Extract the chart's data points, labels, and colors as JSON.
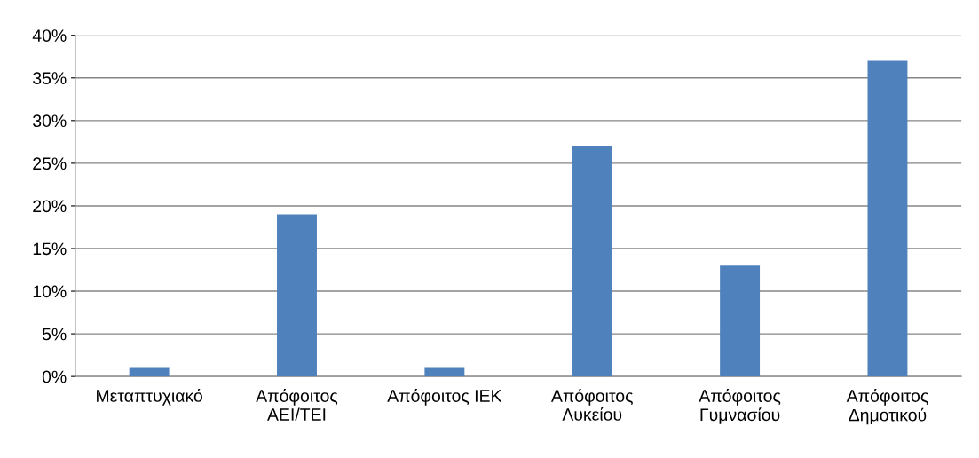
{
  "chart_data": {
    "type": "bar",
    "categories": [
      "Μεταπτυχιακό",
      "Απόφοιτος\nΑΕΙ/ΤΕΙ",
      "Απόφοιτος ΙΕΚ",
      "Απόφοιτος\nΛυκείου",
      "Απόφοιτος\nΓυμνασίου",
      "Απόφοιτος\nΔημοτικού"
    ],
    "values": [
      1,
      19,
      1,
      27,
      13,
      37
    ],
    "color": "#4f81bd",
    "ylim": [
      0,
      40
    ],
    "yticks": [
      {
        "value": 0,
        "label": "0%"
      },
      {
        "value": 5,
        "label": "5%"
      },
      {
        "value": 10,
        "label": "10%"
      },
      {
        "value": 15,
        "label": "15%"
      },
      {
        "value": 20,
        "label": "20%"
      },
      {
        "value": 25,
        "label": "25%"
      },
      {
        "value": 30,
        "label": "30%"
      },
      {
        "value": 35,
        "label": "35%"
      },
      {
        "value": 40,
        "label": "40%"
      }
    ],
    "grid": "y"
  }
}
